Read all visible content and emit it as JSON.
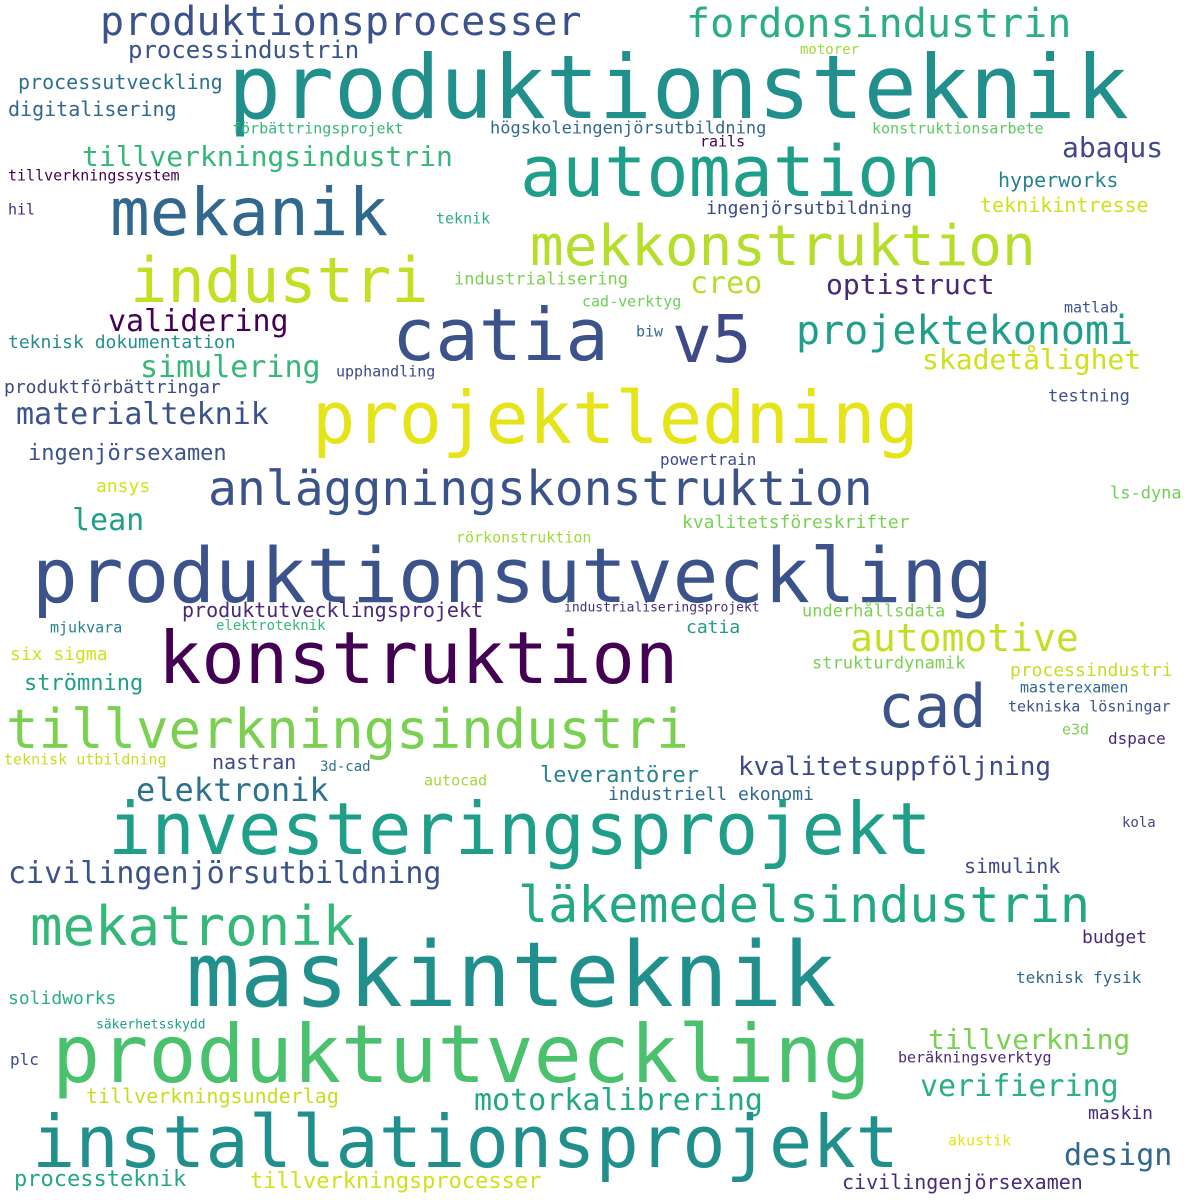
{
  "words": [
    {
      "text": "produktionsteknik",
      "color": "#21908d"
    },
    {
      "text": "produktionsprocesser",
      "color": "#3b528b"
    },
    {
      "text": "fordonsindustrin",
      "color": "#2ab07f"
    },
    {
      "text": "processindustrin",
      "color": "#3b528b"
    },
    {
      "text": "motorer",
      "color": "#a0da39"
    },
    {
      "text": "processutveckling",
      "color": "#2c728e"
    },
    {
      "text": "digitalisering",
      "color": "#31688e"
    },
    {
      "text": "förbättringsprojekt",
      "color": "#35b779"
    },
    {
      "text": "högskoleingenjörsutbildning",
      "color": "#31688e"
    },
    {
      "text": "konstruktionsarbete",
      "color": "#5ec962"
    },
    {
      "text": "automation",
      "color": "#1f9e89"
    },
    {
      "text": "rails",
      "color": "#440154"
    },
    {
      "text": "abaqus",
      "color": "#3e4989"
    },
    {
      "text": "tillverkningsindustrin",
      "color": "#35b779"
    },
    {
      "text": "tillverkningssystem",
      "color": "#440154"
    },
    {
      "text": "hyperworks",
      "color": "#26828e"
    },
    {
      "text": "mekanik",
      "color": "#31688e"
    },
    {
      "text": "hil",
      "color": "#482878"
    },
    {
      "text": "teknik",
      "color": "#2ab07f"
    },
    {
      "text": "ingenjörsutbildning",
      "color": "#3e4989"
    },
    {
      "text": "teknikintresse",
      "color": "#d0e11c"
    },
    {
      "text": "mekkonstruktion",
      "color": "#b5de2b"
    },
    {
      "text": "industri",
      "color": "#c2df23"
    },
    {
      "text": "creo",
      "color": "#b5de2b"
    },
    {
      "text": "industrialisering",
      "color": "#7ad151"
    },
    {
      "text": "optistruct",
      "color": "#482878"
    },
    {
      "text": "cad-verktyg",
      "color": "#6ece58"
    },
    {
      "text": "matlab",
      "color": "#3b528b"
    },
    {
      "text": "catia",
      "color": "#3b528b"
    },
    {
      "text": "v5",
      "color": "#3e4989"
    },
    {
      "text": "projektekonomi",
      "color": "#1f9e89"
    },
    {
      "text": "validering",
      "color": "#440154"
    },
    {
      "text": "teknisk dokumentation",
      "color": "#21908d"
    },
    {
      "text": "biw",
      "color": "#31688e"
    },
    {
      "text": "simulering",
      "color": "#35b779"
    },
    {
      "text": "skadetålighet",
      "color": "#d0e11c"
    },
    {
      "text": "produktförbättringar",
      "color": "#3e4989"
    },
    {
      "text": "upphandling",
      "color": "#3e4989"
    },
    {
      "text": "materialteknik",
      "color": "#3b528b"
    },
    {
      "text": "projektledning",
      "color": "#e5e419"
    },
    {
      "text": "testning",
      "color": "#3b528b"
    },
    {
      "text": "ingenjörsexamen",
      "color": "#3b528b"
    },
    {
      "text": "powertrain",
      "color": "#3e4989"
    },
    {
      "text": "anläggningskonstruktion",
      "color": "#3b528b"
    },
    {
      "text": "ansys",
      "color": "#d0e11c"
    },
    {
      "text": "ls-dyna",
      "color": "#6ece58"
    },
    {
      "text": "lean",
      "color": "#1f9e89"
    },
    {
      "text": "kvalitetsföreskrifter",
      "color": "#7ad151"
    },
    {
      "text": "rörkonstruktion",
      "color": "#a0da39"
    },
    {
      "text": "produktionsutveckling",
      "color": "#3b528b"
    },
    {
      "text": "produktutvecklingsprojekt",
      "color": "#482878"
    },
    {
      "text": "industrialiseringsprojekt",
      "color": "#472d7b"
    },
    {
      "text": "underhållsdata",
      "color": "#7ad151"
    },
    {
      "text": "mjukvara",
      "color": "#26828e"
    },
    {
      "text": "elektroteknik",
      "color": "#35b779"
    },
    {
      "text": "catia",
      "color": "#1f9e89"
    },
    {
      "text": "automotive",
      "color": "#c2df23"
    },
    {
      "text": "konstruktion",
      "color": "#440154"
    },
    {
      "text": "six sigma",
      "color": "#d0e11c"
    },
    {
      "text": "strukturdynamik",
      "color": "#7ad151"
    },
    {
      "text": "processindustri",
      "color": "#c2df23"
    },
    {
      "text": "strömning",
      "color": "#1f9e89"
    },
    {
      "text": "masterexamen",
      "color": "#31688e"
    },
    {
      "text": "cad",
      "color": "#3b528b"
    },
    {
      "text": "tekniska lösningar",
      "color": "#3b528b"
    },
    {
      "text": "tillverkningsindustri",
      "color": "#7ad151"
    },
    {
      "text": "e3d",
      "color": "#7ad151"
    },
    {
      "text": "nastran",
      "color": "#3e4989"
    },
    {
      "text": "dspace",
      "color": "#482878"
    },
    {
      "text": "teknisk utbildning",
      "color": "#c2df23"
    },
    {
      "text": "3d-cad",
      "color": "#2c728e"
    },
    {
      "text": "autocad",
      "color": "#a0da39"
    },
    {
      "text": "kvalitetsuppföljning",
      "color": "#3e4989"
    },
    {
      "text": "leverantörer",
      "color": "#26828e"
    },
    {
      "text": "elektronik",
      "color": "#2c728e"
    },
    {
      "text": "industriell ekonomi",
      "color": "#31688e"
    },
    {
      "text": "investeringsprojekt",
      "color": "#1f9e89"
    },
    {
      "text": "kola",
      "color": "#3e4989"
    },
    {
      "text": "simulink",
      "color": "#3e4989"
    },
    {
      "text": "civilingenjörsutbildning",
      "color": "#3b528b"
    },
    {
      "text": "läkemedelsindustrin",
      "color": "#22a884"
    },
    {
      "text": "mekatronik",
      "color": "#35b779"
    },
    {
      "text": "budget",
      "color": "#482878"
    },
    {
      "text": "maskinteknik",
      "color": "#21908d"
    },
    {
      "text": "teknisk fysik",
      "color": "#31688e"
    },
    {
      "text": "solidworks",
      "color": "#2ab07f"
    },
    {
      "text": "säkerhetsskydd",
      "color": "#1f9e89"
    },
    {
      "text": "tillverkning",
      "color": "#7ad151"
    },
    {
      "text": "plc",
      "color": "#3e4989"
    },
    {
      "text": "produktutveckling",
      "color": "#4ac16d"
    },
    {
      "text": "beräkningsverktyg",
      "color": "#482878"
    },
    {
      "text": "verifiering",
      "color": "#2ab07f"
    },
    {
      "text": "tillverkningsunderlag",
      "color": "#c2df23"
    },
    {
      "text": "motorkalibrering",
      "color": "#22a884"
    },
    {
      "text": "maskin",
      "color": "#482878"
    },
    {
      "text": "installationsprojekt",
      "color": "#21908d"
    },
    {
      "text": "akustik",
      "color": "#e5e419"
    },
    {
      "text": "design",
      "color": "#31688e"
    },
    {
      "text": "processteknik",
      "color": "#22a884"
    },
    {
      "text": "tillverkningsprocesser",
      "color": "#d0e11c"
    },
    {
      "text": "civilingenjörsexamen",
      "color": "#472d7b"
    }
  ]
}
